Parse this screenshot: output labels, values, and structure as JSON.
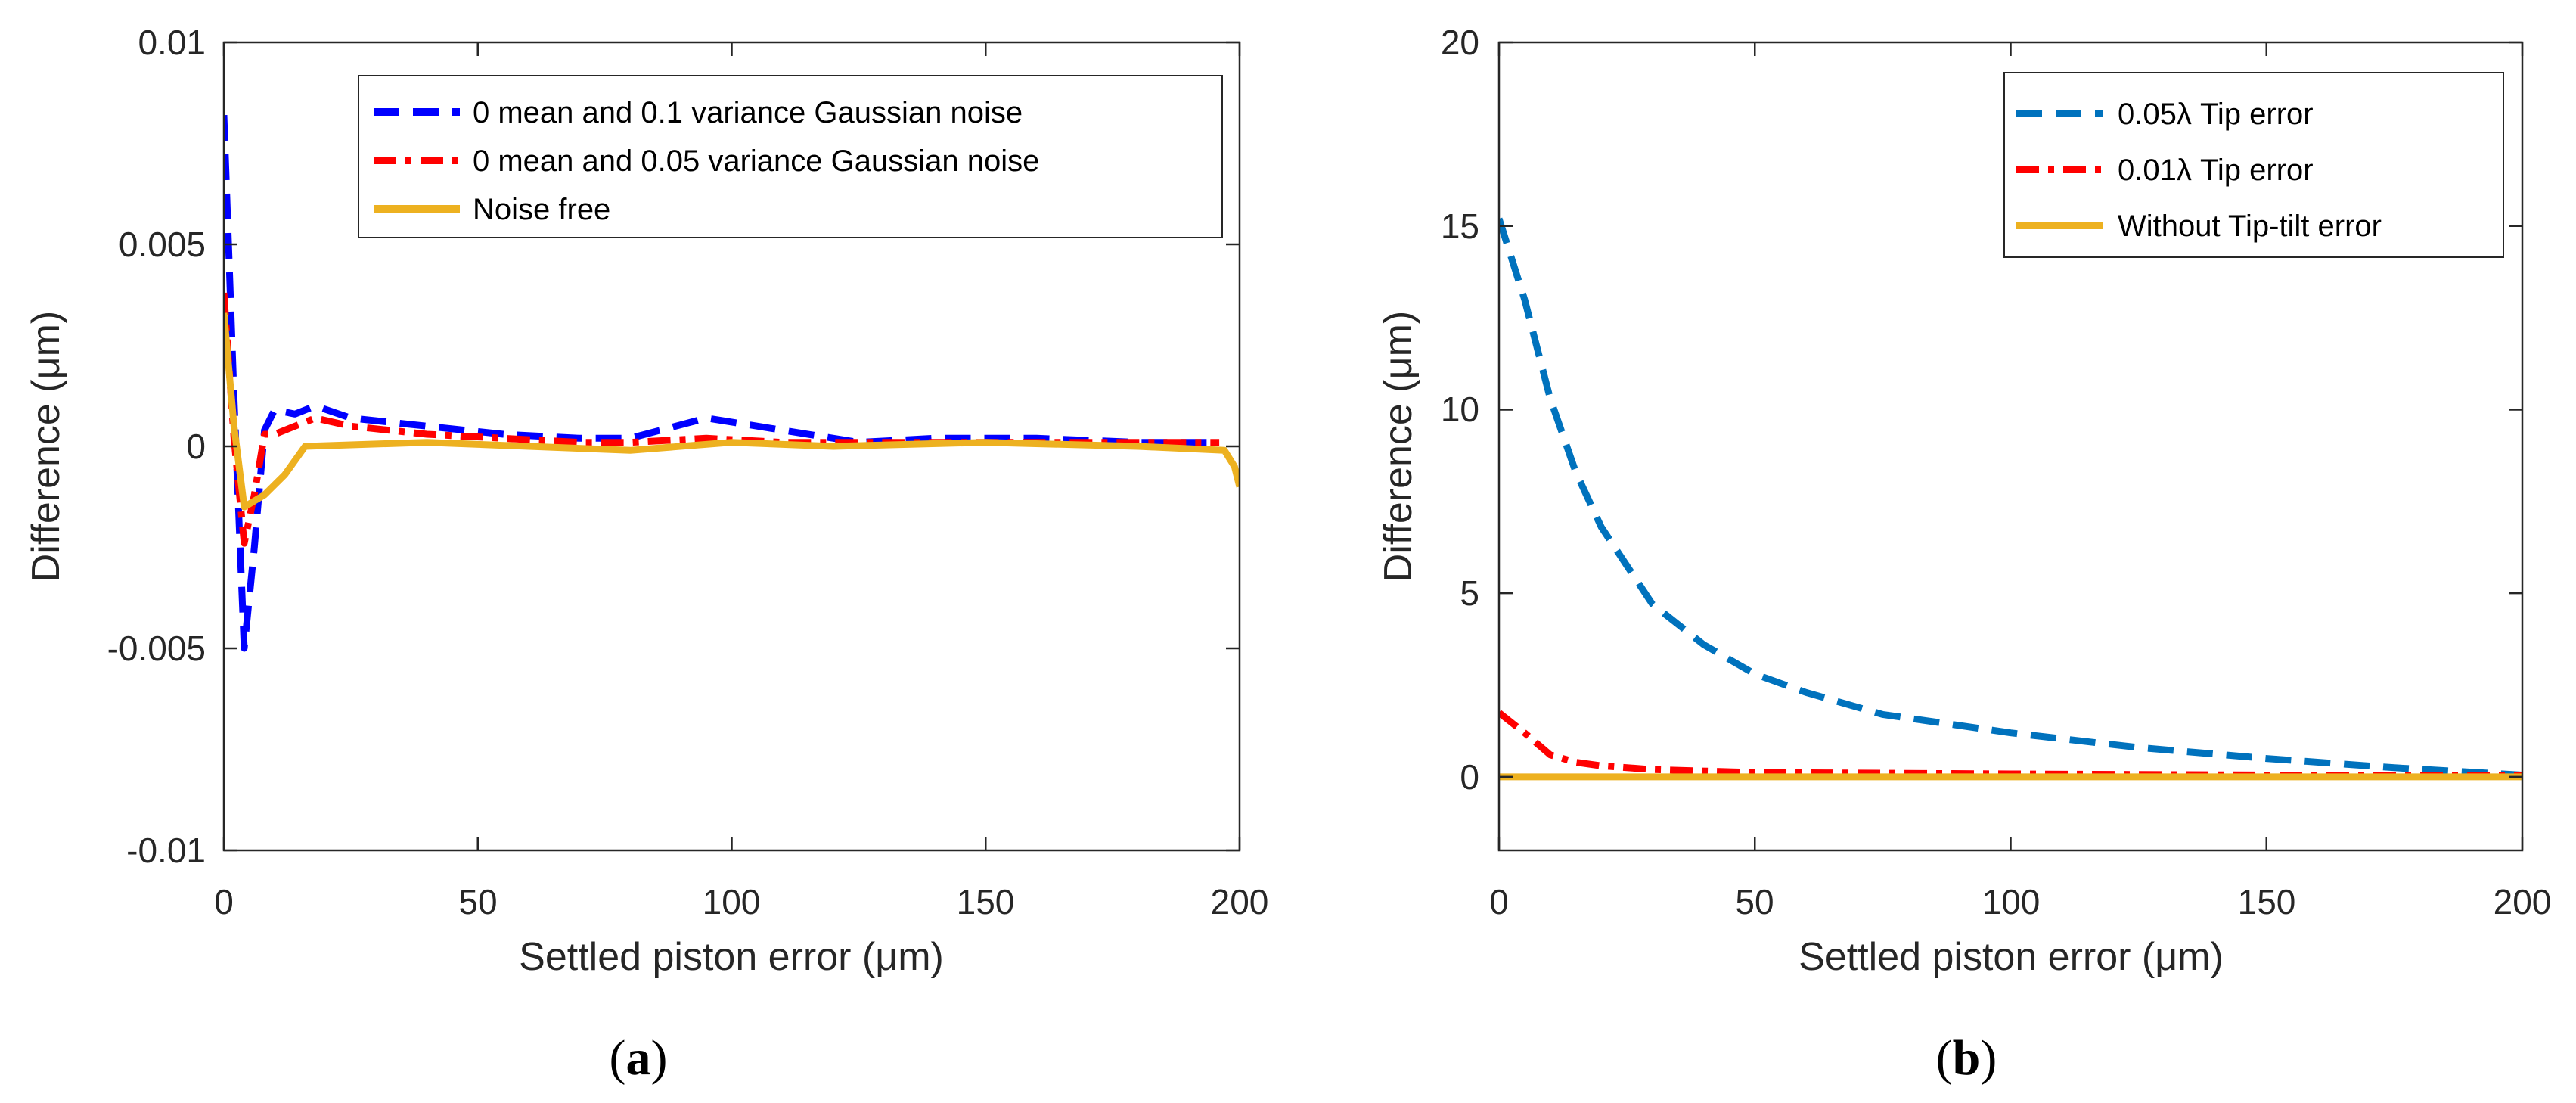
{
  "chart_data": [
    {
      "type": "line",
      "panel_label": "a",
      "title": "",
      "xlabel": "Settled piston error (μm)",
      "ylabel": "Difference (μm)",
      "xlim": [
        0,
        200
      ],
      "ylim": [
        -0.01,
        0.01
      ],
      "xticks": [
        0,
        50,
        100,
        150,
        200
      ],
      "xtick_labels": [
        "0",
        "50",
        "100",
        "150",
        "200"
      ],
      "yticks": [
        -0.01,
        -0.005,
        0,
        0.005,
        0.01
      ],
      "ytick_labels": [
        "-0.01",
        "-0.005",
        "0",
        "0.005",
        "0.01"
      ],
      "grid": false,
      "legend_position": "top-right",
      "series": [
        {
          "name": "0 mean and 0.1 variance Gaussian  noise",
          "color": "#0000ff",
          "style": "dashed",
          "x": [
            0,
            2,
            4,
            6,
            8,
            10,
            14,
            18,
            25,
            40,
            55,
            70,
            80,
            95,
            110,
            125,
            140,
            160,
            180,
            196
          ],
          "y": [
            0.0082,
            0.0012,
            -0.005,
            -0.0025,
            0.0004,
            0.0009,
            0.0008,
            0.001,
            0.0007,
            0.0005,
            0.0003,
            0.0002,
            0.0002,
            0.0007,
            0.0004,
            0.0001,
            0.0002,
            0.0002,
            0.0001,
            0.0001
          ]
        },
        {
          "name": "0 mean and 0.05 variance Gaussian  noise",
          "color": "#ff0000",
          "style": "dashdot",
          "x": [
            0,
            2,
            4,
            6,
            8,
            10,
            14,
            18,
            25,
            40,
            55,
            70,
            80,
            95,
            110,
            125,
            140,
            160,
            180,
            196
          ],
          "y": [
            0.0038,
            0.0002,
            -0.0024,
            -0.0012,
            0.0003,
            0.0003,
            0.0005,
            0.0007,
            0.0005,
            0.0003,
            0.0002,
            0.0001,
            0.0001,
            0.0002,
            0.0001,
            0.0001,
            0.0001,
            0.0001,
            0.0001,
            0.0001
          ]
        },
        {
          "name": "Noise free",
          "color": "#edb120",
          "style": "solid",
          "x": [
            0,
            2,
            4,
            8,
            12,
            16,
            40,
            80,
            100,
            120,
            150,
            180,
            197,
            199,
            200
          ],
          "y": [
            0.0033,
            0.0005,
            -0.0015,
            -0.0012,
            -0.0007,
            0.0,
            0.0001,
            -0.0001,
            0.0001,
            0.0,
            0.0001,
            0.0,
            -0.0001,
            -0.0005,
            -0.001
          ]
        }
      ]
    },
    {
      "type": "line",
      "panel_label": "b",
      "title": "",
      "xlabel": "Settled piston error (μm)",
      "ylabel": "Difference (μm)",
      "xlim": [
        0,
        200
      ],
      "ylim": [
        -2,
        20
      ],
      "xticks": [
        0,
        50,
        100,
        150,
        200
      ],
      "xtick_labels": [
        "0",
        "50",
        "100",
        "150",
        "200"
      ],
      "yticks": [
        0,
        5,
        10,
        15,
        20
      ],
      "ytick_labels": [
        "0",
        "5",
        "10",
        "15",
        "20"
      ],
      "grid": false,
      "legend_position": "top-right",
      "series": [
        {
          "name": "0.05λ Tip error",
          "color": "#0072bd",
          "style": "dashed",
          "x": [
            0,
            5,
            10,
            15,
            20,
            30,
            40,
            50,
            60,
            75,
            100,
            125,
            150,
            175,
            200
          ],
          "y": [
            15.2,
            13.0,
            10.3,
            8.3,
            6.8,
            4.7,
            3.6,
            2.8,
            2.3,
            1.7,
            1.2,
            0.8,
            0.5,
            0.25,
            0.05
          ]
        },
        {
          "name": "0.01λ Tip error",
          "color": "#ff0000",
          "style": "dashdot",
          "x": [
            0,
            5,
            10,
            15,
            20,
            30,
            50,
            100,
            150,
            200
          ],
          "y": [
            1.75,
            1.2,
            0.6,
            0.4,
            0.3,
            0.2,
            0.12,
            0.08,
            0.05,
            0.03
          ]
        },
        {
          "name": "Without Tip-tilt error",
          "color": "#edb120",
          "style": "solid",
          "x": [
            0,
            50,
            100,
            150,
            200
          ],
          "y": [
            0.0,
            0.0,
            0.0,
            0.0,
            0.0
          ]
        }
      ]
    }
  ]
}
